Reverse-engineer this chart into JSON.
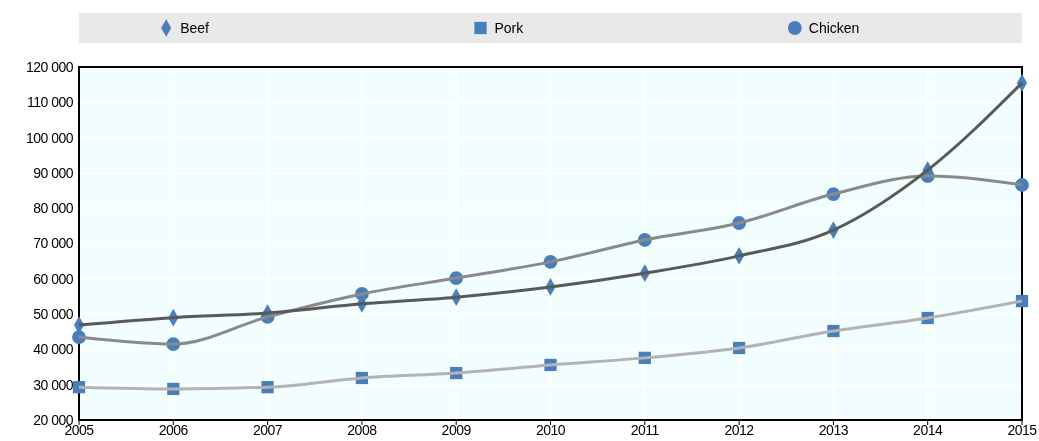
{
  "chart_data": {
    "type": "line",
    "x": [
      2005,
      2006,
      2007,
      2008,
      2009,
      2010,
      2011,
      2012,
      2013,
      2014,
      2015
    ],
    "series": [
      {
        "name": "Beef",
        "color": "#595959",
        "marker": "diamond",
        "values": [
          46900,
          49000,
          50300,
          52900,
          54800,
          57700,
          61600,
          66500,
          73800,
          90800,
          115500
        ]
      },
      {
        "name": "Pork",
        "color": "#b3b3b3",
        "marker": "square",
        "values": [
          29300,
          28800,
          29300,
          31900,
          33300,
          35600,
          37600,
          40400,
          45200,
          48900,
          53700
        ]
      },
      {
        "name": "Chicken",
        "color": "#8a8a8a",
        "marker": "circle",
        "values": [
          43500,
          41500,
          49200,
          55700,
          60200,
          64800,
          71000,
          75800,
          84000,
          89100,
          86600
        ]
      }
    ],
    "xlim": [
      2005,
      2015
    ],
    "xticks": [
      2005,
      2006,
      2007,
      2008,
      2009,
      2010,
      2011,
      2012,
      2013,
      2014,
      2015
    ],
    "ylim": [
      20000,
      120000
    ],
    "yticks": [
      {
        "value": 20000,
        "label": "20 000"
      },
      {
        "value": 30000,
        "label": "30 000"
      },
      {
        "value": 40000,
        "label": "40 000"
      },
      {
        "value": 50000,
        "label": "50 000"
      },
      {
        "value": 60000,
        "label": "60 000"
      },
      {
        "value": 70000,
        "label": "70 000"
      },
      {
        "value": 80000,
        "label": "80 000"
      },
      {
        "value": 90000,
        "label": "90 000"
      },
      {
        "value": 100000,
        "label": "100 000"
      },
      {
        "value": 110000,
        "label": "110 000"
      },
      {
        "value": 120000,
        "label": "120 000"
      }
    ],
    "grid": true,
    "legend": "top",
    "line_style": "solid"
  }
}
